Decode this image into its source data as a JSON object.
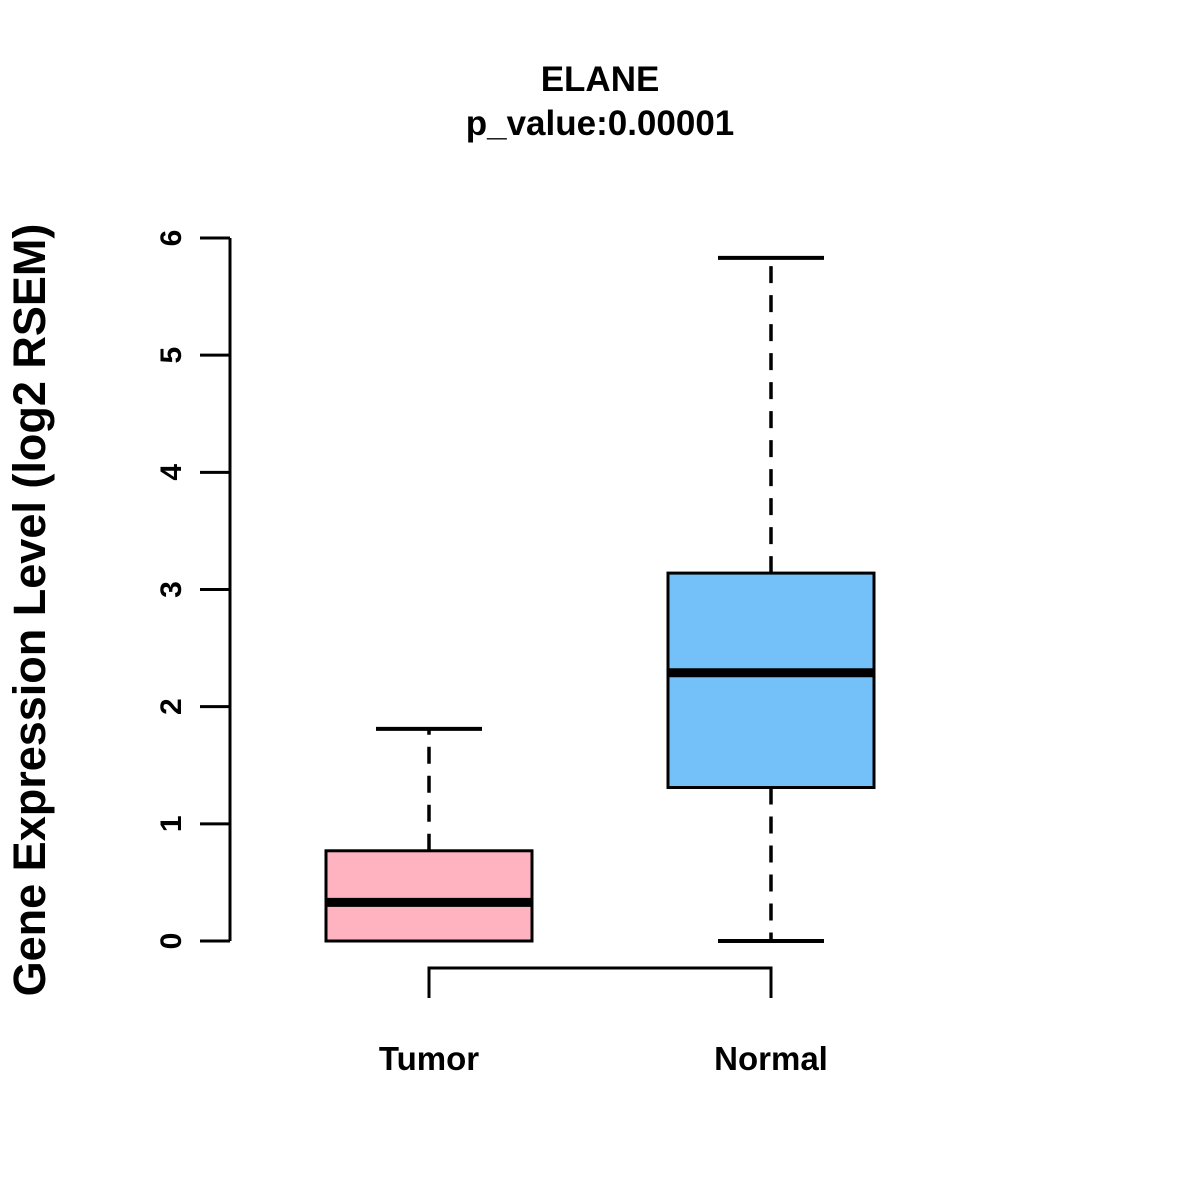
{
  "chart_data": {
    "type": "boxplot",
    "title": "ELANE",
    "subtitle": "p_value:0.00001",
    "ylabel": "Gene Expression Level (log2 RSEM)",
    "xlabel": "",
    "ylim": [
      0,
      6
    ],
    "yticks": [
      0,
      1,
      2,
      3,
      4,
      5,
      6
    ],
    "grid": false,
    "legend": "none",
    "categories": [
      "Tumor",
      "Normal"
    ],
    "groups": [
      {
        "label": "Tumor",
        "fill_color": "#FFB3C1",
        "min": 0.0,
        "q1": 0.0,
        "median": 0.33,
        "q3": 0.77,
        "max": 1.81
      },
      {
        "label": "Normal",
        "fill_color": "#74C0F8",
        "min": 0.0,
        "q1": 1.31,
        "median": 2.29,
        "q3": 3.14,
        "max": 5.83
      }
    ],
    "comparison_bracket": {
      "from": "Tumor",
      "to": "Normal"
    },
    "colors": {
      "stroke": "#000000",
      "background": "#FFFFFF"
    }
  }
}
